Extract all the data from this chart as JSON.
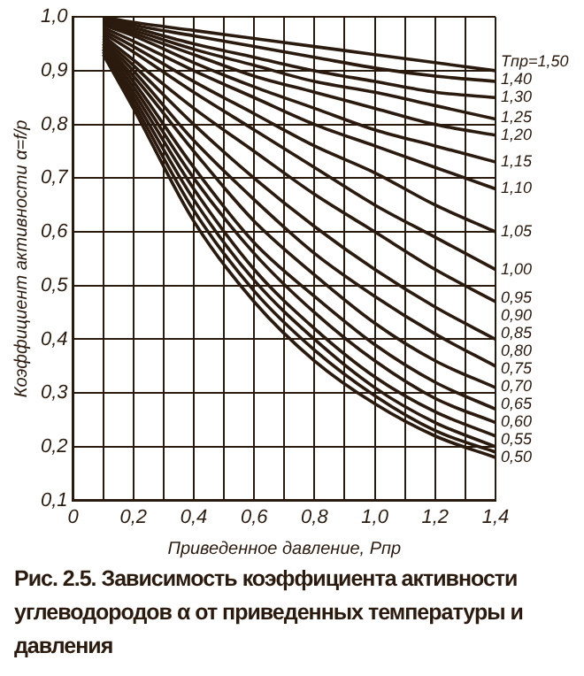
{
  "chart_data": {
    "type": "line",
    "xlabel": "Приведенное давление, Pпр",
    "ylabel": "Коэффициент активности α=f/p",
    "annotations": [
      "Рис. 2.5. Зависимость коэффициента активности углеводородов α от приведенных температуры и давления"
    ],
    "x": [
      0.1,
      0.2,
      0.4,
      0.6,
      0.8,
      1.0,
      1.2,
      1.4
    ],
    "xlim": [
      0,
      1.4
    ],
    "ylim": [
      0.1,
      1.0
    ],
    "xticks": [
      0,
      {
        "value": 0.1,
        "label": null
      },
      {
        "value": 0.2,
        "label": "0,2"
      },
      {
        "value": 0.3,
        "label": null
      },
      {
        "value": 0.4,
        "label": "0,4"
      },
      {
        "value": 0.5,
        "label": null
      },
      {
        "value": 0.6,
        "label": "0,6"
      },
      {
        "value": 0.7,
        "label": null
      },
      {
        "value": 0.8,
        "label": "0,8"
      },
      {
        "value": 0.9,
        "label": null
      },
      {
        "value": 1.0,
        "label": "1,0"
      },
      {
        "value": 1.1,
        "label": null
      },
      {
        "value": 1.2,
        "label": "1,2"
      },
      {
        "value": 1.3,
        "label": null
      },
      {
        "value": 1.4,
        "label": "1,4"
      }
    ],
    "yticks": [
      {
        "value": 0.1,
        "label": "0,1"
      },
      {
        "value": 0.2,
        "label": "0,2"
      },
      {
        "value": 0.3,
        "label": "0,3"
      },
      {
        "value": 0.4,
        "label": "0,4"
      },
      {
        "value": 0.5,
        "label": "0,5"
      },
      {
        "value": 0.6,
        "label": "0,6"
      },
      {
        "value": 0.7,
        "label": "0,7"
      },
      {
        "value": 0.8,
        "label": "0,8"
      },
      {
        "value": 0.9,
        "label": "0,9"
      },
      {
        "value": 1.0,
        "label": "1,0"
      }
    ],
    "grid": true,
    "legend": false,
    "marker": "none",
    "line_style": "solid",
    "series": [
      {
        "name": "Tпр=1,50",
        "color": "#2b1a0e",
        "values": [
          1.0,
          0.99,
          0.975,
          0.96,
          0.945,
          0.93,
          0.915,
          0.9
        ]
      },
      {
        "name": "1,40",
        "color": "#2b1a0e",
        "values": [
          1.0,
          0.985,
          0.965,
          0.945,
          0.925,
          0.905,
          0.89,
          0.88
        ]
      },
      {
        "name": "1,30",
        "color": "#2b1a0e",
        "values": [
          0.995,
          0.98,
          0.95,
          0.925,
          0.9,
          0.88,
          0.86,
          0.85
        ]
      },
      {
        "name": "1,25",
        "color": "#2b1a0e",
        "values": [
          0.99,
          0.975,
          0.94,
          0.91,
          0.88,
          0.86,
          0.835,
          0.81
        ]
      },
      {
        "name": "1,20",
        "color": "#2b1a0e",
        "values": [
          0.99,
          0.97,
          0.93,
          0.89,
          0.86,
          0.83,
          0.8,
          0.78
        ]
      },
      {
        "name": "1,15",
        "color": "#2b1a0e",
        "values": [
          0.985,
          0.965,
          0.915,
          0.87,
          0.83,
          0.79,
          0.76,
          0.73
        ]
      },
      {
        "name": "1,10",
        "color": "#2b1a0e",
        "values": [
          0.98,
          0.955,
          0.9,
          0.85,
          0.8,
          0.76,
          0.72,
          0.68
        ]
      },
      {
        "name": "1,05",
        "color": "#2b1a0e",
        "values": [
          0.975,
          0.945,
          0.88,
          0.82,
          0.76,
          0.71,
          0.65,
          0.6
        ]
      },
      {
        "name": "1,00",
        "color": "#2b1a0e",
        "values": [
          0.97,
          0.935,
          0.86,
          0.79,
          0.72,
          0.65,
          0.59,
          0.53
        ]
      },
      {
        "name": "0,95",
        "color": "#2b1a0e",
        "values": [
          0.965,
          0.92,
          0.83,
          0.75,
          0.67,
          0.6,
          0.53,
          0.47
        ]
      },
      {
        "name": "0,90",
        "color": "#2b1a0e",
        "values": [
          0.96,
          0.91,
          0.8,
          0.7,
          0.61,
          0.53,
          0.46,
          0.4
        ]
      },
      {
        "name": "0,85",
        "color": "#2b1a0e",
        "values": [
          0.955,
          0.9,
          0.77,
          0.66,
          0.56,
          0.48,
          0.41,
          0.35
        ]
      },
      {
        "name": "0,80",
        "color": "#2b1a0e",
        "values": [
          0.95,
          0.89,
          0.75,
          0.62,
          0.52,
          0.43,
          0.36,
          0.31
        ]
      },
      {
        "name": "0,75",
        "color": "#2b1a0e",
        "values": [
          0.95,
          0.88,
          0.72,
          0.58,
          0.48,
          0.39,
          0.32,
          0.27
        ]
      },
      {
        "name": "0,70",
        "color": "#2b1a0e",
        "values": [
          0.945,
          0.87,
          0.7,
          0.56,
          0.45,
          0.36,
          0.29,
          0.245
        ]
      },
      {
        "name": "0,65",
        "color": "#2b1a0e",
        "values": [
          0.94,
          0.86,
          0.68,
          0.53,
          0.42,
          0.33,
          0.265,
          0.22
        ]
      },
      {
        "name": "0,60",
        "color": "#2b1a0e",
        "values": [
          0.94,
          0.85,
          0.66,
          0.51,
          0.4,
          0.31,
          0.245,
          0.2
        ]
      },
      {
        "name": "0,55",
        "color": "#2b1a0e",
        "values": [
          0.935,
          0.84,
          0.64,
          0.49,
          0.38,
          0.295,
          0.23,
          0.19
        ]
      },
      {
        "name": "0,50",
        "color": "#2b1a0e",
        "values": [
          0.93,
          0.83,
          0.62,
          0.47,
          0.36,
          0.28,
          0.22,
          0.18
        ]
      }
    ]
  }
}
